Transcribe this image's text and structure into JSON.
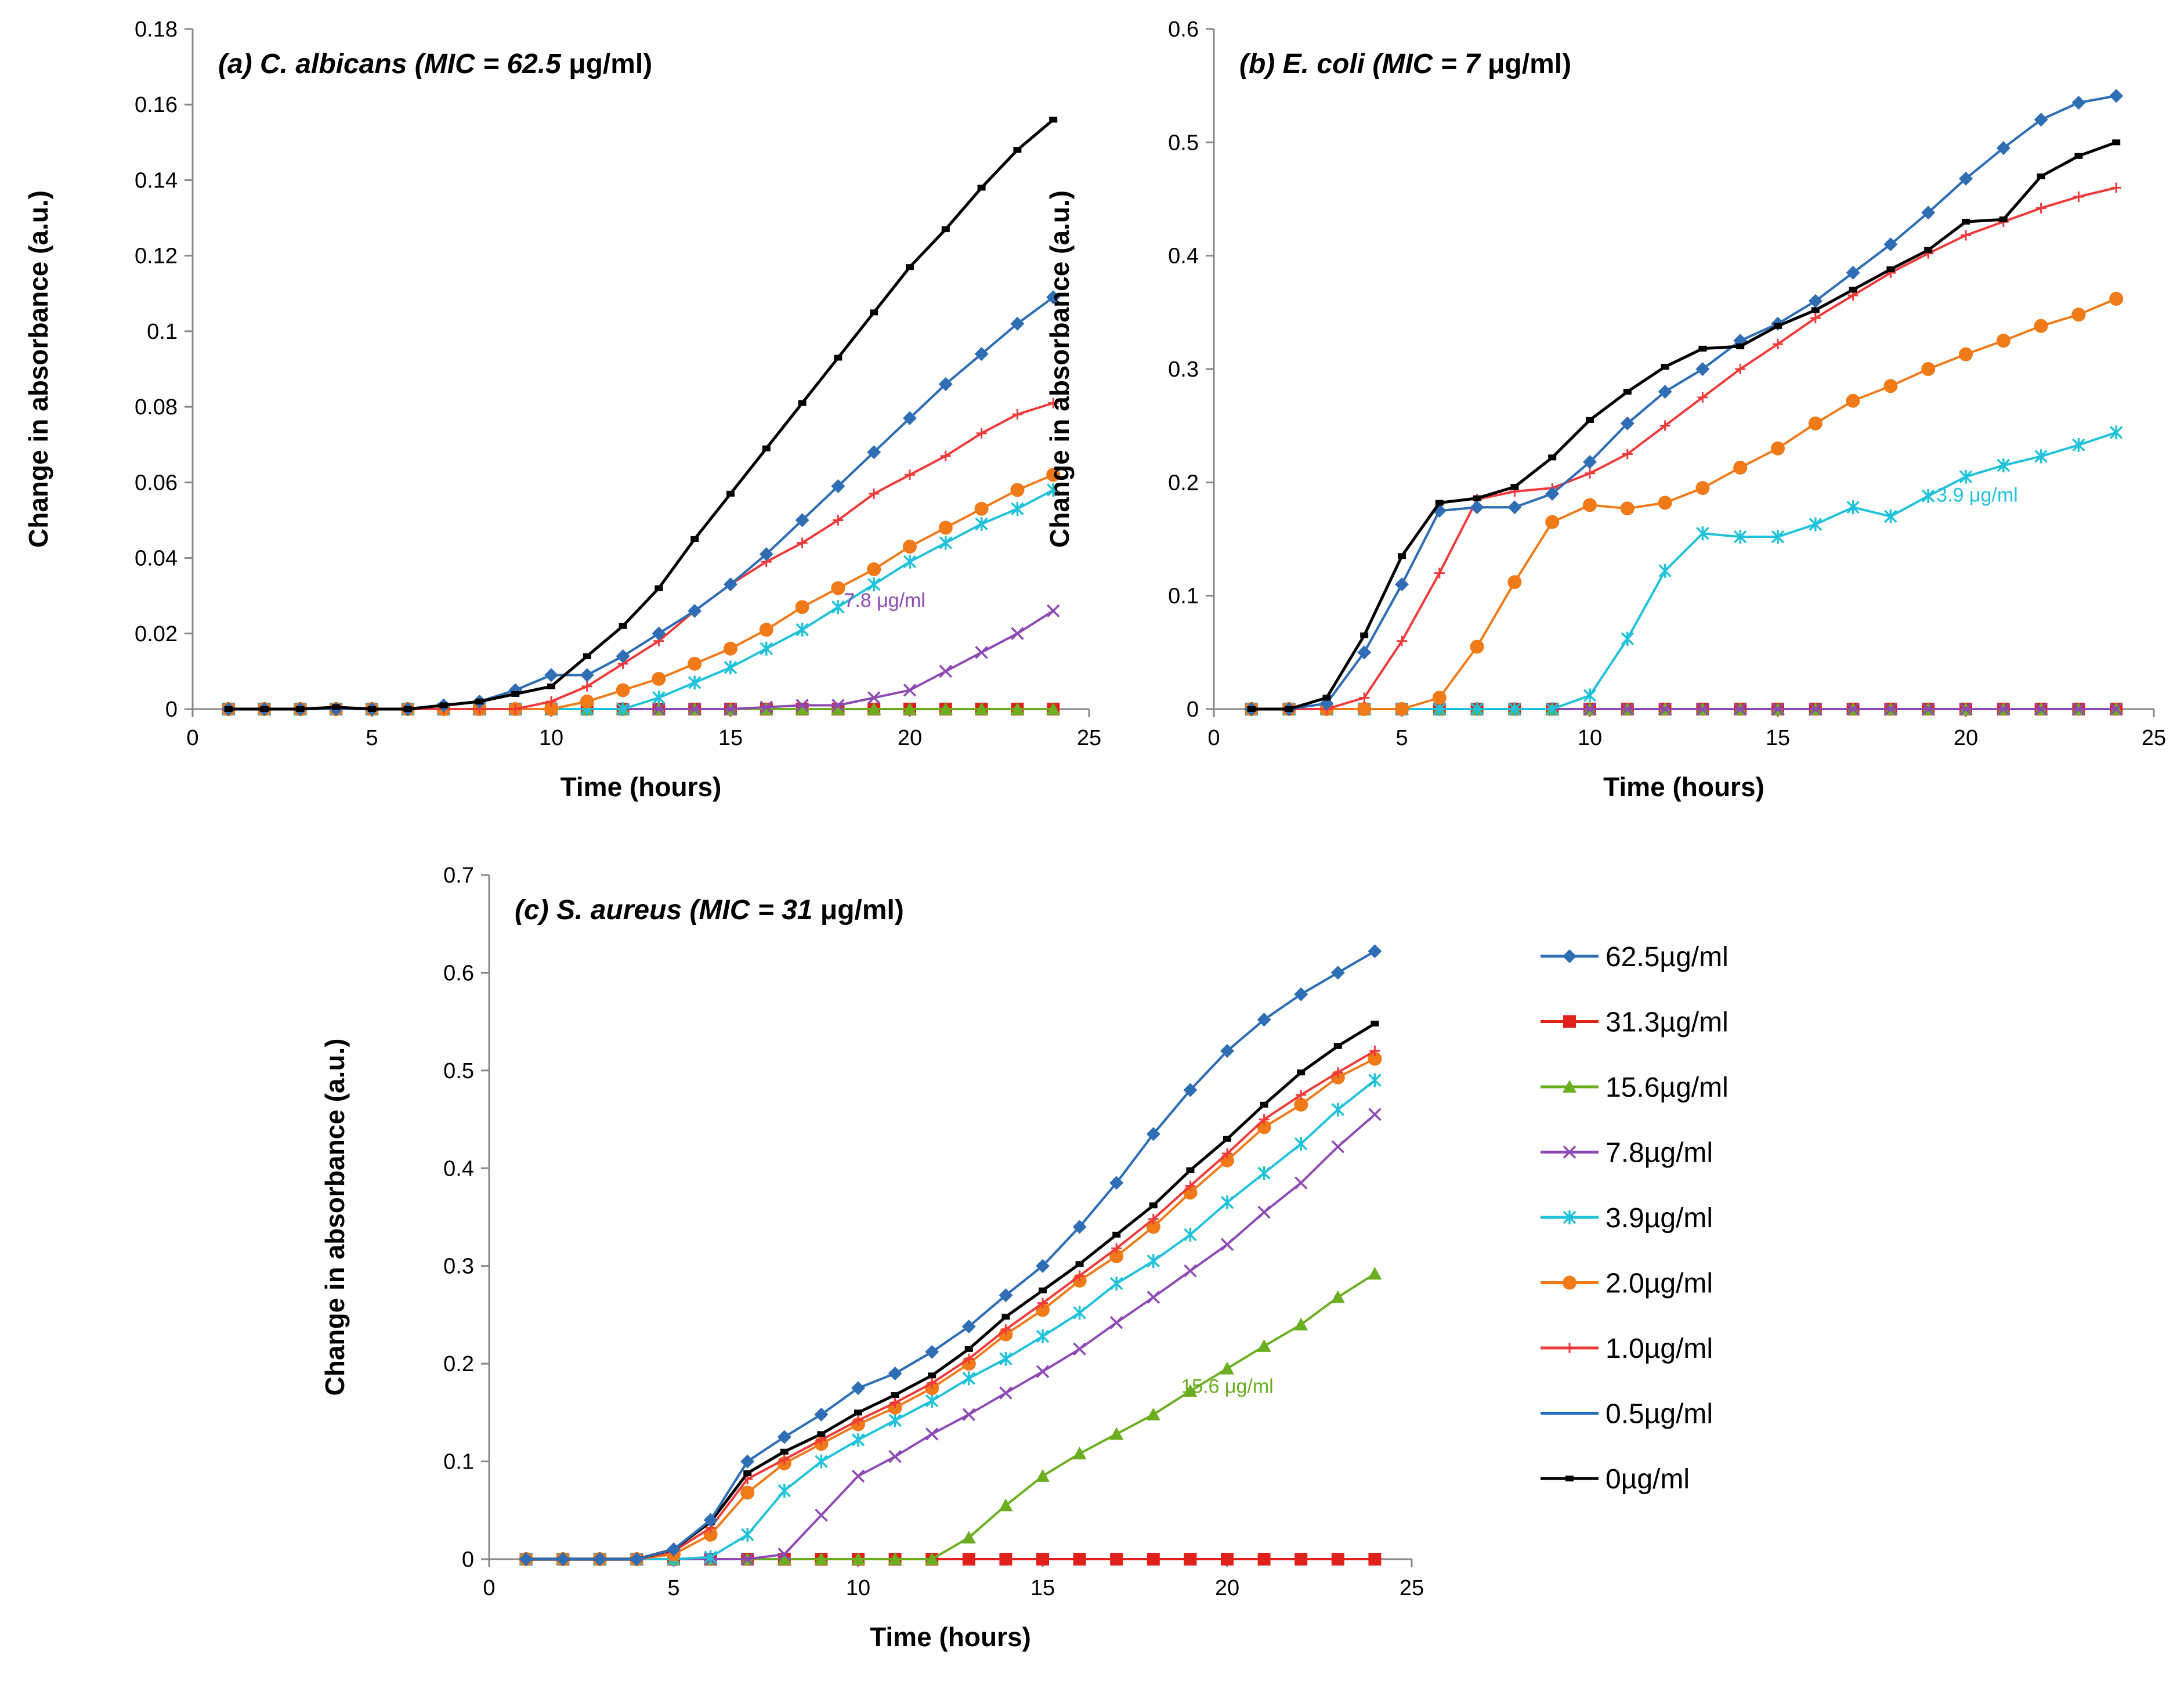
{
  "series_meta": [
    {
      "key": "c62",
      "name": "62.5µg/ml",
      "color": "#2F6EB5",
      "marker": "diamond"
    },
    {
      "key": "c31",
      "name": "31.3µg/ml",
      "color": "#E0201B",
      "marker": "square"
    },
    {
      "key": "c15",
      "name": "15.6µg/ml",
      "color": "#6BAE1F",
      "marker": "triangle"
    },
    {
      "key": "c7",
      "name": "7.8µg/ml",
      "color": "#8E4AB4",
      "marker": "x"
    },
    {
      "key": "c3",
      "name": "3.9µg/ml",
      "color": "#1FC2DA",
      "marker": "star"
    },
    {
      "key": "c2",
      "name": "2.0µg/ml",
      "color": "#F07A18",
      "marker": "circle"
    },
    {
      "key": "c1",
      "name": "1.0µg/ml",
      "color": "#EE3A3A",
      "marker": "plus"
    },
    {
      "key": "c05",
      "name": "0.5µg/ml",
      "color": "#1E6FC4",
      "marker": "none"
    },
    {
      "key": "c0",
      "name": "0µg/ml",
      "color": "#000000",
      "marker": "dash"
    }
  ],
  "chart_data": [
    {
      "id": "a",
      "type": "line",
      "title": {
        "label": "(a)",
        "organism": "C. albicans",
        "mic": "(MIC = 62.5",
        "unit": "μg/ml)"
      },
      "xlabel": "Time (hours)",
      "ylabel": "Change in absorbance (a.u.)",
      "xlim": [
        0,
        25
      ],
      "ylim": [
        0,
        0.18
      ],
      "xticks": [
        0,
        5,
        10,
        15,
        20,
        25
      ],
      "yticks": [
        0,
        0.02,
        0.04,
        0.06,
        0.08,
        0.1,
        0.12,
        0.14,
        0.16,
        0.18
      ],
      "x": [
        1,
        2,
        3,
        4,
        5,
        6,
        7,
        8,
        9,
        10,
        11,
        12,
        13,
        14,
        15,
        16,
        17,
        18,
        19,
        20,
        21,
        22,
        23,
        24
      ],
      "series": [
        {
          "key": "c0",
          "values": [
            0,
            0,
            0,
            0.0005,
            0,
            0,
            0.001,
            0.002,
            0.004,
            0.006,
            0.014,
            0.022,
            0.032,
            0.045,
            0.057,
            0.069,
            0.081,
            0.093,
            0.105,
            0.117,
            0.127,
            0.138,
            0.148,
            0.156
          ]
        },
        {
          "key": "c62",
          "values": [
            0,
            0,
            0,
            0,
            0,
            0,
            0.001,
            0.002,
            0.005,
            0.009,
            0.009,
            0.014,
            0.02,
            0.026,
            0.033,
            0.041,
            0.05,
            0.059,
            0.068,
            0.077,
            0.086,
            0.094,
            0.102,
            0.109
          ]
        },
        {
          "key": "c05",
          "values": [
            0,
            0,
            0,
            0,
            0,
            0,
            0.001,
            0.002,
            0.005,
            0.009,
            0.009,
            0.014,
            0.02,
            0.026,
            0.033,
            0.041,
            0.05,
            0.059,
            0.068,
            0.077,
            0.086,
            0.094,
            0.102,
            0.109
          ]
        },
        {
          "key": "c1",
          "values": [
            0,
            0,
            0,
            0,
            0,
            0,
            0,
            0,
            0,
            0.002,
            0.006,
            0.012,
            0.018,
            0.026,
            0.033,
            0.039,
            0.044,
            0.05,
            0.057,
            0.062,
            0.067,
            0.073,
            0.078,
            0.081
          ]
        },
        {
          "key": "c2",
          "values": [
            0,
            0,
            0,
            0,
            0,
            0,
            0,
            0,
            0,
            0,
            0.002,
            0.005,
            0.008,
            0.012,
            0.016,
            0.021,
            0.027,
            0.032,
            0.037,
            0.043,
            0.048,
            0.053,
            0.058,
            0.062
          ]
        },
        {
          "key": "c3",
          "values": [
            0,
            0,
            0,
            0,
            0,
            0,
            0,
            0,
            0,
            0,
            0,
            0,
            0.003,
            0.007,
            0.011,
            0.016,
            0.021,
            0.027,
            0.033,
            0.039,
            0.044,
            0.049,
            0.053,
            0.058
          ]
        },
        {
          "key": "c7",
          "values": [
            0,
            0,
            0,
            0,
            0,
            0,
            0,
            0,
            0,
            0,
            0,
            0,
            0,
            0,
            0,
            0.0005,
            0.001,
            0.001,
            0.003,
            0.005,
            0.01,
            0.015,
            0.02,
            0.026
          ]
        },
        {
          "key": "c15",
          "values": [
            0,
            0,
            0,
            0,
            0,
            0,
            0,
            0,
            0,
            0,
            0,
            0,
            0,
            0,
            0,
            0,
            0,
            0,
            0,
            0,
            0,
            0,
            0,
            0
          ]
        },
        {
          "key": "c31",
          "values": [
            0,
            0,
            0,
            0,
            0,
            0,
            0,
            0,
            0,
            0,
            0,
            0,
            0,
            0,
            0,
            0,
            0,
            0,
            0,
            0,
            0,
            0,
            0,
            0
          ]
        }
      ],
      "annotations": [
        {
          "text": "7.8 μg/ml",
          "key": "c7",
          "x": 19.3,
          "y": 0.027
        }
      ]
    },
    {
      "id": "b",
      "type": "line",
      "title": {
        "label": "(b)",
        "organism": "E. coli",
        "mic": "(MIC = 7",
        "unit": "μg/ml)"
      },
      "xlabel": "Time (hours)",
      "ylabel": "Change in absorbance (a.u.)",
      "xlim": [
        0,
        25
      ],
      "ylim": [
        0,
        0.6
      ],
      "xticks": [
        0,
        5,
        10,
        15,
        20,
        25
      ],
      "yticks": [
        0,
        0.1,
        0.2,
        0.3,
        0.4,
        0.5,
        0.6
      ],
      "x": [
        1,
        2,
        3,
        4,
        5,
        6,
        7,
        8,
        9,
        10,
        11,
        12,
        13,
        14,
        15,
        16,
        17,
        18,
        19,
        20,
        21,
        22,
        23,
        24
      ],
      "series": [
        {
          "key": "c0",
          "values": [
            0,
            0,
            0.01,
            0.065,
            0.135,
            0.182,
            0.186,
            0.196,
            0.222,
            0.255,
            0.28,
            0.302,
            0.318,
            0.32,
            0.338,
            0.352,
            0.37,
            0.388,
            0.405,
            0.43,
            0.432,
            0.47,
            0.488,
            0.5
          ]
        },
        {
          "key": "c62",
          "values": [
            0,
            0,
            0.005,
            0.05,
            0.11,
            0.175,
            0.178,
            0.178,
            0.19,
            0.218,
            0.252,
            0.28,
            0.3,
            0.325,
            0.34,
            0.36,
            0.385,
            0.41,
            0.438,
            0.468,
            0.495,
            0.52,
            0.535,
            0.541
          ]
        },
        {
          "key": "c05",
          "values": [
            0,
            0,
            0.005,
            0.05,
            0.11,
            0.175,
            0.178,
            0.178,
            0.19,
            0.218,
            0.252,
            0.28,
            0.3,
            0.325,
            0.34,
            0.36,
            0.385,
            0.41,
            0.438,
            0.468,
            0.495,
            0.52,
            0.535,
            0.541
          ]
        },
        {
          "key": "c1",
          "values": [
            0,
            0,
            0,
            0.01,
            0.06,
            0.12,
            0.185,
            0.192,
            0.195,
            0.208,
            0.225,
            0.25,
            0.275,
            0.3,
            0.322,
            0.345,
            0.365,
            0.385,
            0.402,
            0.418,
            0.43,
            0.442,
            0.452,
            0.46
          ]
        },
        {
          "key": "c2",
          "values": [
            0,
            0,
            0,
            0,
            0,
            0.01,
            0.055,
            0.112,
            0.165,
            0.18,
            0.177,
            0.182,
            0.195,
            0.213,
            0.23,
            0.252,
            0.272,
            0.285,
            0.3,
            0.313,
            0.325,
            0.338,
            0.348,
            0.362
          ]
        },
        {
          "key": "c3",
          "values": [
            0,
            0,
            0,
            0,
            0,
            0,
            0,
            0,
            0,
            0.012,
            0.062,
            0.122,
            0.155,
            0.152,
            0.152,
            0.163,
            0.178,
            0.17,
            0.188,
            0.205,
            0.215,
            0.223,
            0.233,
            0.244
          ]
        },
        {
          "key": "c7",
          "values": [
            0,
            0,
            0,
            0,
            0,
            0,
            0,
            0,
            0,
            0,
            0,
            0,
            0,
            0,
            0,
            0,
            0,
            0,
            0,
            0,
            0,
            0,
            0,
            0
          ]
        },
        {
          "key": "c15",
          "values": [
            0,
            0,
            0,
            0,
            0,
            0,
            0,
            0,
            0,
            0,
            0,
            0,
            0,
            0,
            0,
            0,
            0,
            0,
            0,
            0,
            0,
            0,
            0,
            0
          ]
        },
        {
          "key": "c31",
          "values": [
            0,
            0,
            0,
            0,
            0,
            0,
            0,
            0,
            0,
            0,
            0,
            0,
            0,
            0,
            0,
            0,
            0,
            0,
            0,
            0,
            0,
            0,
            0,
            0
          ]
        }
      ],
      "annotations": [
        {
          "text": "3.9 μg/ml",
          "key": "c3",
          "x": 20.3,
          "y": 0.183
        }
      ]
    },
    {
      "id": "c",
      "type": "line",
      "title": {
        "label": "(c)",
        "organism": "S. aureus",
        "mic": "(MIC = 31",
        "unit": "μg/ml)"
      },
      "xlabel": "Time (hours)",
      "ylabel": "Change in absorbance (a.u.)",
      "xlim": [
        0,
        25
      ],
      "ylim": [
        0,
        0.7
      ],
      "xticks": [
        0,
        5,
        10,
        15,
        20,
        25
      ],
      "yticks": [
        0,
        0.1,
        0.2,
        0.3,
        0.4,
        0.5,
        0.6,
        0.7
      ],
      "x": [
        1,
        2,
        3,
        4,
        5,
        6,
        7,
        8,
        9,
        10,
        11,
        12,
        13,
        14,
        15,
        16,
        17,
        18,
        19,
        20,
        21,
        22,
        23,
        24
      ],
      "series": [
        {
          "key": "c62",
          "values": [
            0,
            0,
            0,
            0,
            0.01,
            0.04,
            0.1,
            0.125,
            0.148,
            0.175,
            0.19,
            0.212,
            0.238,
            0.27,
            0.3,
            0.34,
            0.385,
            0.435,
            0.48,
            0.52,
            0.552,
            0.578,
            0.6,
            0.622
          ]
        },
        {
          "key": "c05",
          "values": [
            0,
            0,
            0,
            0,
            0.01,
            0.04,
            0.1,
            0.125,
            0.148,
            0.175,
            0.19,
            0.212,
            0.238,
            0.27,
            0.3,
            0.34,
            0.385,
            0.435,
            0.48,
            0.52,
            0.552,
            0.578,
            0.6,
            0.622
          ]
        },
        {
          "key": "c0",
          "values": [
            0,
            0,
            0,
            0,
            0.01,
            0.038,
            0.088,
            0.11,
            0.128,
            0.15,
            0.168,
            0.188,
            0.215,
            0.248,
            0.275,
            0.302,
            0.332,
            0.362,
            0.398,
            0.43,
            0.465,
            0.498,
            0.525,
            0.548
          ]
        },
        {
          "key": "c1",
          "values": [
            0,
            0,
            0,
            0,
            0.008,
            0.032,
            0.082,
            0.102,
            0.122,
            0.142,
            0.16,
            0.18,
            0.205,
            0.235,
            0.262,
            0.29,
            0.318,
            0.348,
            0.382,
            0.415,
            0.45,
            0.475,
            0.498,
            0.52
          ]
        },
        {
          "key": "c2",
          "values": [
            0,
            0,
            0,
            0,
            0.005,
            0.025,
            0.068,
            0.098,
            0.118,
            0.138,
            0.155,
            0.175,
            0.2,
            0.23,
            0.255,
            0.285,
            0.31,
            0.34,
            0.375,
            0.408,
            0.442,
            0.465,
            0.493,
            0.512
          ]
        },
        {
          "key": "c3",
          "values": [
            0,
            0,
            0,
            0,
            0,
            0.002,
            0.025,
            0.07,
            0.1,
            0.122,
            0.142,
            0.162,
            0.185,
            0.205,
            0.228,
            0.252,
            0.282,
            0.305,
            0.332,
            0.365,
            0.395,
            0.425,
            0.46,
            0.49
          ]
        },
        {
          "key": "c7",
          "values": [
            0,
            0,
            0,
            0,
            0,
            0,
            0,
            0.005,
            0.045,
            0.085,
            0.105,
            0.128,
            0.148,
            0.17,
            0.192,
            0.215,
            0.242,
            0.268,
            0.295,
            0.322,
            0.355,
            0.385,
            0.422,
            0.455
          ]
        },
        {
          "key": "c15",
          "values": [
            0,
            0,
            0,
            0,
            0,
            0,
            0,
            0,
            0,
            0,
            0,
            0,
            0.022,
            0.055,
            0.085,
            0.108,
            0.128,
            0.148,
            0.172,
            0.195,
            0.218,
            0.24,
            0.268,
            0.292
          ]
        },
        {
          "key": "c31",
          "values": [
            0,
            0,
            0,
            0,
            0,
            0,
            0,
            0,
            0,
            0,
            0,
            0,
            0,
            0,
            0,
            0,
            0,
            0,
            0,
            0,
            0,
            0,
            0,
            0
          ]
        }
      ],
      "annotations": [
        {
          "text": "15.6 μg/ml",
          "key": "c15",
          "x": 20,
          "y": 0.17
        }
      ]
    }
  ]
}
